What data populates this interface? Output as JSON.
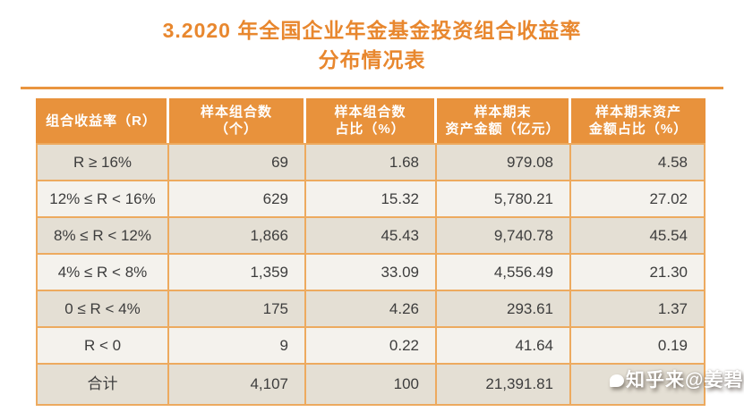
{
  "page": {
    "title_line1": "3.2020 年全国企业年金基金投资组合收益率",
    "title_line2": "分布情况表"
  },
  "table": {
    "headers": [
      {
        "line1": "组合收益率（R）",
        "line2": ""
      },
      {
        "line1": "样本组合数",
        "line2": "（个）"
      },
      {
        "line1": "样本组合数",
        "line2": "占比（%）"
      },
      {
        "line1": "样本期末",
        "line2": "资产金额（亿元）"
      },
      {
        "line1": "样本期末资产",
        "line2": "金额占比（%）"
      }
    ],
    "rows": [
      {
        "cells": [
          "R ≥ 16%",
          "69",
          "1.68",
          "979.08",
          "4.58"
        ]
      },
      {
        "cells": [
          "12% ≤ R < 16%",
          "629",
          "15.32",
          "5,780.21",
          "27.02"
        ]
      },
      {
        "cells": [
          "8% ≤ R < 12%",
          "1,866",
          "45.43",
          "9,740.78",
          "45.54"
        ]
      },
      {
        "cells": [
          "4% ≤ R < 8%",
          "1,359",
          "33.09",
          "4,556.49",
          "21.30"
        ]
      },
      {
        "cells": [
          "0 ≤ R < 4%",
          "175",
          "4.26",
          "293.61",
          "1.37"
        ]
      },
      {
        "cells": [
          "R < 0",
          "9",
          "0.22",
          "41.64",
          "0.19"
        ]
      }
    ],
    "total_row": {
      "cells": [
        "合计",
        "4,107",
        "100",
        "21,391.81",
        ""
      ]
    }
  },
  "watermark": {
    "text": "知乎来@姜碧"
  },
  "colors": {
    "title_orange": "#e8872e",
    "header_orange": "#e8923c",
    "border_orange": "#edaa5f",
    "row_dark": "#e4dfd4",
    "row_light": "#f4f2ed",
    "text_dark": "#3d3d3d"
  }
}
